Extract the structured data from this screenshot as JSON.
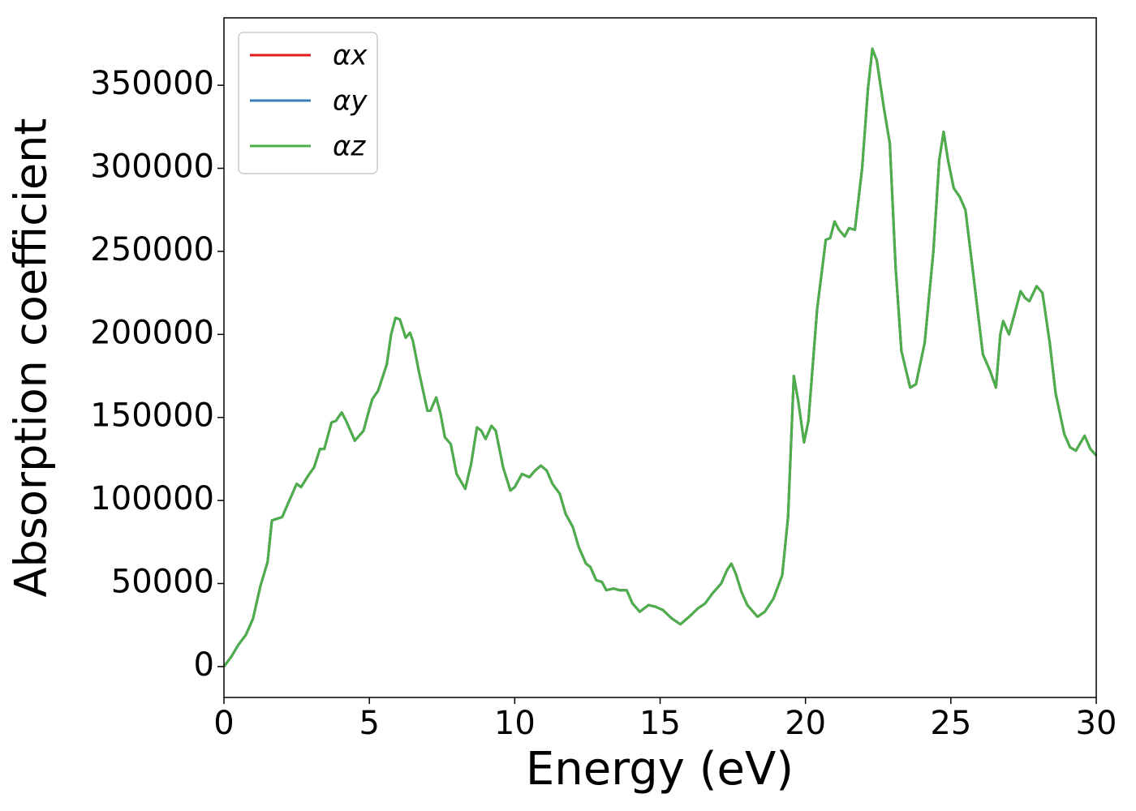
{
  "chart_data": {
    "type": "line",
    "xlabel": "Energy (eV)",
    "ylabel": "Absorption coefficient",
    "x": [
      0,
      0.25,
      0.5,
      0.75,
      1.0,
      1.25,
      1.5,
      1.65,
      2.0,
      2.2,
      2.5,
      2.65,
      2.9,
      3.1,
      3.3,
      3.45,
      3.7,
      3.85,
      4.05,
      4.2,
      4.5,
      4.8,
      5.0,
      5.1,
      5.3,
      5.6,
      5.75,
      5.9,
      6.05,
      6.25,
      6.4,
      6.5,
      6.7,
      7.0,
      7.1,
      7.3,
      7.45,
      7.6,
      7.8,
      8.0,
      8.3,
      8.5,
      8.7,
      8.85,
      9.0,
      9.2,
      9.35,
      9.6,
      9.85,
      10.0,
      10.25,
      10.5,
      10.7,
      10.9,
      11.1,
      11.3,
      11.55,
      11.75,
      12.0,
      12.2,
      12.45,
      12.6,
      12.8,
      13.0,
      13.15,
      13.4,
      13.6,
      13.85,
      14.05,
      14.3,
      14.6,
      14.85,
      15.1,
      15.4,
      15.7,
      16.0,
      16.3,
      16.55,
      16.8,
      17.1,
      17.3,
      17.45,
      17.6,
      17.8,
      18.0,
      18.35,
      18.6,
      18.9,
      19.2,
      19.4,
      19.6,
      19.75,
      19.95,
      20.1,
      20.4,
      20.7,
      20.85,
      21.0,
      21.15,
      21.35,
      21.5,
      21.7,
      21.95,
      22.15,
      22.3,
      22.45,
      22.7,
      22.9,
      23.1,
      23.3,
      23.6,
      23.8,
      24.1,
      24.4,
      24.6,
      24.75,
      24.9,
      25.1,
      25.3,
      25.5,
      25.8,
      26.1,
      26.35,
      26.55,
      26.7,
      26.8,
      27.0,
      27.2,
      27.4,
      27.55,
      27.7,
      27.95,
      28.15,
      28.4,
      28.6,
      28.9,
      29.1,
      29.3,
      29.6,
      29.8,
      30.0
    ],
    "series": [
      {
        "name": "αx",
        "color": "#e41a1c",
        "values": [
          0,
          5900,
          13200,
          19000,
          28800,
          48300,
          63000,
          88000,
          90000,
          98000,
          110000,
          108000,
          115000,
          120000,
          131000,
          131000,
          147000,
          148000,
          153000,
          148000,
          136000,
          142000,
          155000,
          161000,
          166000,
          182000,
          200000,
          210000,
          209000,
          198000,
          201000,
          196000,
          178000,
          154000,
          154000,
          162000,
          152000,
          138000,
          134000,
          116000,
          107000,
          122000,
          144000,
          142000,
          137000,
          145000,
          142000,
          120000,
          106000,
          108000,
          116000,
          114000,
          118000,
          121000,
          118000,
          110000,
          104000,
          92000,
          84000,
          72000,
          62000,
          60000,
          52000,
          51000,
          46000,
          47000,
          46000,
          46000,
          38000,
          33000,
          37000,
          36000,
          34000,
          29000,
          25500,
          30000,
          35000,
          38000,
          44000,
          50000,
          58000,
          62000,
          56000,
          45000,
          37000,
          30000,
          33000,
          41000,
          55000,
          90000,
          175000,
          160000,
          135000,
          148000,
          215000,
          257000,
          258000,
          268000,
          263000,
          259000,
          264000,
          263000,
          300000,
          348000,
          372000,
          365000,
          336000,
          315000,
          240000,
          190000,
          168000,
          170000,
          195000,
          250000,
          305000,
          322000,
          305000,
          288000,
          283000,
          275000,
          232000,
          188000,
          178000,
          168000,
          200000,
          208000,
          200000,
          213000,
          226000,
          222000,
          220000,
          229000,
          225000,
          195000,
          165000,
          140000,
          132000,
          130000,
          139000,
          131000,
          127000
        ]
      },
      {
        "name": "αy",
        "color": "#377eb8",
        "values": [
          0,
          5900,
          13200,
          19000,
          28800,
          48300,
          63000,
          88000,
          90000,
          98000,
          110000,
          108000,
          115000,
          120000,
          131000,
          131000,
          147000,
          148000,
          153000,
          148000,
          136000,
          142000,
          155000,
          161000,
          166000,
          182000,
          200000,
          210000,
          209000,
          198000,
          201000,
          196000,
          178000,
          154000,
          154000,
          162000,
          152000,
          138000,
          134000,
          116000,
          107000,
          122000,
          144000,
          142000,
          137000,
          145000,
          142000,
          120000,
          106000,
          108000,
          116000,
          114000,
          118000,
          121000,
          118000,
          110000,
          104000,
          92000,
          84000,
          72000,
          62000,
          60000,
          52000,
          51000,
          46000,
          47000,
          46000,
          46000,
          38000,
          33000,
          37000,
          36000,
          34000,
          29000,
          25500,
          30000,
          35000,
          38000,
          44000,
          50000,
          58000,
          62000,
          56000,
          45000,
          37000,
          30000,
          33000,
          41000,
          55000,
          90000,
          175000,
          160000,
          135000,
          148000,
          215000,
          257000,
          258000,
          268000,
          263000,
          259000,
          264000,
          263000,
          300000,
          348000,
          372000,
          365000,
          336000,
          315000,
          240000,
          190000,
          168000,
          170000,
          195000,
          250000,
          305000,
          322000,
          305000,
          288000,
          283000,
          275000,
          232000,
          188000,
          178000,
          168000,
          200000,
          208000,
          200000,
          213000,
          226000,
          222000,
          220000,
          229000,
          225000,
          195000,
          165000,
          140000,
          132000,
          130000,
          139000,
          131000,
          127000
        ]
      },
      {
        "name": "αz",
        "color": "#4daf4a",
        "values": [
          0,
          5900,
          13200,
          19000,
          28800,
          48300,
          63000,
          88000,
          90000,
          98000,
          110000,
          108000,
          115000,
          120000,
          131000,
          131000,
          147000,
          148000,
          153000,
          148000,
          136000,
          142000,
          155000,
          161000,
          166000,
          182000,
          200000,
          210000,
          209000,
          198000,
          201000,
          196000,
          178000,
          154000,
          154000,
          162000,
          152000,
          138000,
          134000,
          116000,
          107000,
          122000,
          144000,
          142000,
          137000,
          145000,
          142000,
          120000,
          106000,
          108000,
          116000,
          114000,
          118000,
          121000,
          118000,
          110000,
          104000,
          92000,
          84000,
          72000,
          62000,
          60000,
          52000,
          51000,
          46000,
          47000,
          46000,
          46000,
          38000,
          33000,
          37000,
          36000,
          34000,
          29000,
          25500,
          30000,
          35000,
          38000,
          44000,
          50000,
          58000,
          62000,
          56000,
          45000,
          37000,
          30000,
          33000,
          41000,
          55000,
          90000,
          175000,
          160000,
          135000,
          148000,
          215000,
          257000,
          258000,
          268000,
          263000,
          259000,
          264000,
          263000,
          300000,
          348000,
          372000,
          365000,
          336000,
          315000,
          240000,
          190000,
          168000,
          170000,
          195000,
          250000,
          305000,
          322000,
          305000,
          288000,
          283000,
          275000,
          232000,
          188000,
          178000,
          168000,
          200000,
          208000,
          200000,
          213000,
          226000,
          222000,
          220000,
          229000,
          225000,
          195000,
          165000,
          140000,
          132000,
          130000,
          139000,
          131000,
          127000
        ]
      }
    ],
    "xlim": [
      0,
      30
    ],
    "xticks": [
      0,
      5,
      10,
      15,
      20,
      25,
      30
    ],
    "ylim": [
      -18600,
      390600
    ],
    "yticks": [
      0,
      50000,
      100000,
      150000,
      200000,
      250000,
      300000,
      350000
    ],
    "legend": "upper left"
  }
}
